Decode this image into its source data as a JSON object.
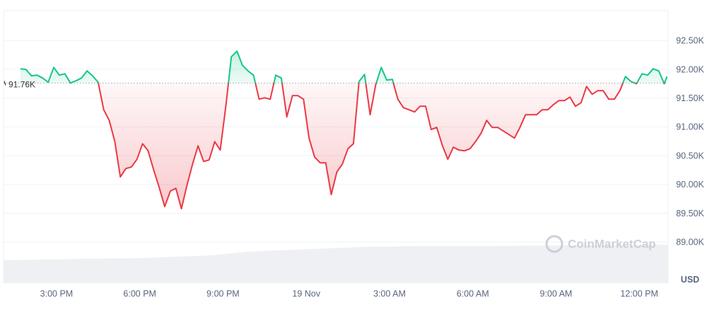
{
  "chart_data": {
    "type": "line",
    "x": [
      13.7,
      13.9,
      14.1,
      14.3,
      14.5,
      14.7,
      14.9,
      15.1,
      15.3,
      15.5,
      15.7,
      15.9,
      16.1,
      16.3,
      16.5,
      16.7,
      16.9,
      17.1,
      17.3,
      17.5,
      17.7,
      17.9,
      18.1,
      18.3,
      18.5,
      18.7,
      18.9,
      19.1,
      19.3,
      19.5,
      19.7,
      19.9,
      20.1,
      20.3,
      20.5,
      20.7,
      20.9,
      21.1,
      21.3,
      21.5,
      21.7,
      21.9,
      22.1,
      22.3,
      22.5,
      22.7,
      22.9,
      23.1,
      23.3,
      23.5,
      23.7,
      23.9,
      24.1,
      24.3,
      24.5,
      24.7,
      24.9,
      25.1,
      25.3,
      25.5,
      25.7,
      25.9,
      26.1,
      26.3,
      26.5,
      26.7,
      26.9,
      27.1,
      27.3,
      27.5,
      27.7,
      27.9,
      28.1,
      28.3,
      28.5,
      28.7,
      28.9,
      29.1,
      29.3,
      29.5,
      29.7,
      29.9,
      30.1,
      30.3,
      30.5,
      30.7,
      30.9,
      31.1,
      31.3,
      31.5,
      31.7,
      31.9,
      32.1,
      32.3,
      32.5,
      32.7,
      32.9,
      33.1,
      33.3,
      33.5,
      33.7,
      33.9,
      34.1,
      34.3,
      34.5,
      34.7,
      34.9,
      35.1,
      35.3,
      35.5,
      35.7,
      35.9,
      36.1,
      36.3,
      36.5,
      36.7,
      36.9,
      37.0
    ],
    "values": [
      92009,
      91997,
      91886,
      91898,
      91849,
      91775,
      92033,
      91898,
      91923,
      91763,
      91800,
      91849,
      91972,
      91886,
      91775,
      91297,
      91112,
      90744,
      90130,
      90277,
      90302,
      90437,
      90707,
      90584,
      90253,
      89946,
      89614,
      89884,
      89934,
      89577,
      89983,
      90351,
      90670,
      90400,
      90425,
      90744,
      90597,
      91358,
      92218,
      92316,
      92070,
      91972,
      91898,
      91481,
      91505,
      91481,
      91898,
      91849,
      91174,
      91542,
      91542,
      91481,
      90805,
      90474,
      90376,
      90376,
      89823,
      90216,
      90351,
      90621,
      90707,
      91788,
      91911,
      91211,
      91726,
      92033,
      91812,
      91825,
      91481,
      91333,
      91297,
      91260,
      91358,
      91358,
      90953,
      90990,
      90683,
      90437,
      90646,
      90597,
      90584,
      90621,
      90744,
      90891,
      91112,
      90990,
      90990,
      90928,
      90867,
      90805,
      90990,
      91211,
      91211,
      91211,
      91297,
      91297,
      91383,
      91456,
      91456,
      91518,
      91358,
      91419,
      91702,
      91567,
      91628,
      91628,
      91481,
      91481,
      91628,
      91874,
      91788,
      91751,
      91923,
      91898,
      92009,
      91972,
      91751,
      91874
    ],
    "baseline": {
      "value": 91760,
      "label": "91.76K"
    },
    "colors": {
      "up": "#16c784",
      "down": "#ea3943"
    },
    "xlim": [
      13.09,
      37.04
    ],
    "xticks": [
      {
        "value": 15,
        "label": "3:00 PM"
      },
      {
        "value": 18,
        "label": "6:00 PM"
      },
      {
        "value": 21,
        "label": "9:00 PM"
      },
      {
        "value": 24,
        "label": "19 Nov"
      },
      {
        "value": 27,
        "label": "3:00 AM"
      },
      {
        "value": 30,
        "label": "6:00 AM"
      },
      {
        "value": 33,
        "label": "9:00 AM"
      },
      {
        "value": 36,
        "label": "12:00 PM"
      }
    ],
    "ylim": [
      88290,
      93020
    ],
    "yticks": [
      {
        "value": 92500,
        "label": "92.50K"
      },
      {
        "value": 92000,
        "label": "92.00K"
      },
      {
        "value": 91500,
        "label": "91.50K"
      },
      {
        "value": 91000,
        "label": "91.00K"
      },
      {
        "value": 90500,
        "label": "90.50K"
      },
      {
        "value": 90000,
        "label": "90.00K"
      },
      {
        "value": 89500,
        "label": "89.50K"
      },
      {
        "value": 89000,
        "label": "89.00K"
      }
    ],
    "y_label": "USD",
    "watermark": "CoinMarketCap",
    "grid": true
  }
}
